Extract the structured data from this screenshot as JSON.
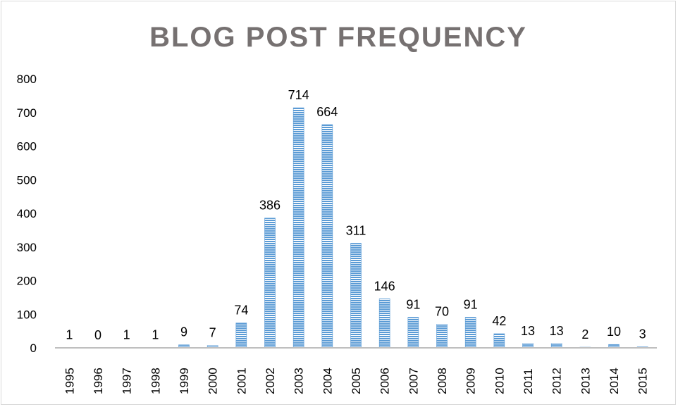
{
  "chart_data": {
    "type": "bar",
    "title": "BLOG POST FREQUENCY",
    "xlabel": "",
    "ylabel": "",
    "categories": [
      "1995",
      "1996",
      "1997",
      "1998",
      "1999",
      "2000",
      "2001",
      "2002",
      "2003",
      "2004",
      "2005",
      "2006",
      "2007",
      "2008",
      "2009",
      "2010",
      "2011",
      "2012",
      "2013",
      "2014",
      "2015"
    ],
    "values": [
      1,
      0,
      1,
      1,
      9,
      7,
      74,
      386,
      714,
      664,
      311,
      146,
      91,
      70,
      91,
      42,
      13,
      13,
      2,
      10,
      3
    ],
    "ylim": [
      0,
      800
    ],
    "yticks": [
      0,
      100,
      200,
      300,
      400,
      500,
      600,
      700,
      800
    ],
    "grid": false,
    "legend": "none",
    "data_labels": true,
    "bar_color": "#5b9bd5",
    "axis_color": "#bfbfbf",
    "title_color": "#767171"
  }
}
